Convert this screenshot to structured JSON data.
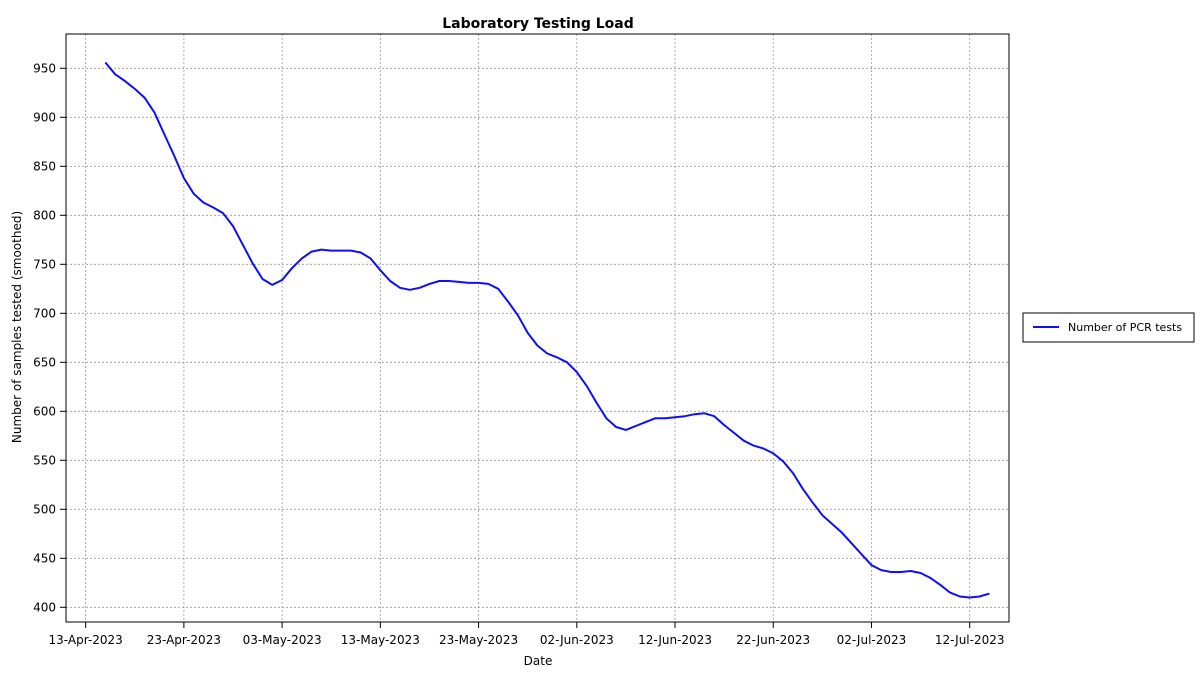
{
  "chart_data": {
    "type": "line",
    "title": "Laboratory Testing Load",
    "xlabel": "Date",
    "ylabel": "Number of samples tested (smoothed)",
    "xlim": [
      "2023-04-11",
      "2023-07-16"
    ],
    "ylim": [
      385,
      985
    ],
    "x_ticks": [
      "13-Apr-2023",
      "23-Apr-2023",
      "03-May-2023",
      "13-May-2023",
      "23-May-2023",
      "02-Jun-2023",
      "12-Jun-2023",
      "22-Jun-2023",
      "02-Jul-2023",
      "12-Jul-2023"
    ],
    "y_ticks": [
      400,
      450,
      500,
      550,
      600,
      650,
      700,
      750,
      800,
      850,
      900,
      950
    ],
    "grid": true,
    "legend_position": "right",
    "colors": {
      "series": "#1010ee"
    },
    "series": [
      {
        "name": "Number of PCR tests",
        "points": [
          [
            "2023-04-15",
            956
          ],
          [
            "2023-04-16",
            944
          ],
          [
            "2023-04-17",
            937
          ],
          [
            "2023-04-18",
            929
          ],
          [
            "2023-04-19",
            920
          ],
          [
            "2023-04-20",
            905
          ],
          [
            "2023-04-21",
            883
          ],
          [
            "2023-04-22",
            861
          ],
          [
            "2023-04-23",
            838
          ],
          [
            "2023-04-24",
            822
          ],
          [
            "2023-04-25",
            813
          ],
          [
            "2023-04-26",
            808
          ],
          [
            "2023-04-27",
            802
          ],
          [
            "2023-04-28",
            789
          ],
          [
            "2023-04-29",
            770
          ],
          [
            "2023-04-30",
            751
          ],
          [
            "2023-05-01",
            735
          ],
          [
            "2023-05-02",
            729
          ],
          [
            "2023-05-03",
            734
          ],
          [
            "2023-05-04",
            746
          ],
          [
            "2023-05-05",
            756
          ],
          [
            "2023-05-06",
            763
          ],
          [
            "2023-05-07",
            765
          ],
          [
            "2023-05-08",
            764
          ],
          [
            "2023-05-09",
            764
          ],
          [
            "2023-05-10",
            764
          ],
          [
            "2023-05-11",
            762
          ],
          [
            "2023-05-12",
            756
          ],
          [
            "2023-05-13",
            744
          ],
          [
            "2023-05-14",
            733
          ],
          [
            "2023-05-15",
            726
          ],
          [
            "2023-05-16",
            724
          ],
          [
            "2023-05-17",
            726
          ],
          [
            "2023-05-18",
            730
          ],
          [
            "2023-05-19",
            733
          ],
          [
            "2023-05-20",
            733
          ],
          [
            "2023-05-21",
            732
          ],
          [
            "2023-05-22",
            731
          ],
          [
            "2023-05-23",
            731
          ],
          [
            "2023-05-24",
            730
          ],
          [
            "2023-05-25",
            725
          ],
          [
            "2023-05-26",
            712
          ],
          [
            "2023-05-27",
            698
          ],
          [
            "2023-05-28",
            680
          ],
          [
            "2023-05-29",
            667
          ],
          [
            "2023-05-30",
            659
          ],
          [
            "2023-05-31",
            655
          ],
          [
            "2023-06-01",
            650
          ],
          [
            "2023-06-02",
            640
          ],
          [
            "2023-06-03",
            626
          ],
          [
            "2023-06-04",
            609
          ],
          [
            "2023-06-05",
            593
          ],
          [
            "2023-06-06",
            584
          ],
          [
            "2023-06-07",
            581
          ],
          [
            "2023-06-08",
            585
          ],
          [
            "2023-06-09",
            589
          ],
          [
            "2023-06-10",
            593
          ],
          [
            "2023-06-11",
            593
          ],
          [
            "2023-06-12",
            594
          ],
          [
            "2023-06-13",
            595
          ],
          [
            "2023-06-14",
            597
          ],
          [
            "2023-06-15",
            598
          ],
          [
            "2023-06-16",
            595
          ],
          [
            "2023-06-17",
            586
          ],
          [
            "2023-06-18",
            578
          ],
          [
            "2023-06-19",
            570
          ],
          [
            "2023-06-20",
            565
          ],
          [
            "2023-06-21",
            562
          ],
          [
            "2023-06-22",
            557
          ],
          [
            "2023-06-23",
            549
          ],
          [
            "2023-06-24",
            537
          ],
          [
            "2023-06-25",
            521
          ],
          [
            "2023-06-26",
            507
          ],
          [
            "2023-06-27",
            494
          ],
          [
            "2023-06-28",
            485
          ],
          [
            "2023-06-29",
            476
          ],
          [
            "2023-06-30",
            465
          ],
          [
            "2023-07-01",
            454
          ],
          [
            "2023-07-02",
            443
          ],
          [
            "2023-07-03",
            438
          ],
          [
            "2023-07-04",
            436
          ],
          [
            "2023-07-05",
            436
          ],
          [
            "2023-07-06",
            437
          ],
          [
            "2023-07-07",
            435
          ],
          [
            "2023-07-08",
            430
          ],
          [
            "2023-07-09",
            423
          ],
          [
            "2023-07-10",
            415
          ],
          [
            "2023-07-11",
            411
          ],
          [
            "2023-07-12",
            410
          ],
          [
            "2023-07-13",
            411
          ],
          [
            "2023-07-14",
            414
          ]
        ]
      }
    ]
  }
}
